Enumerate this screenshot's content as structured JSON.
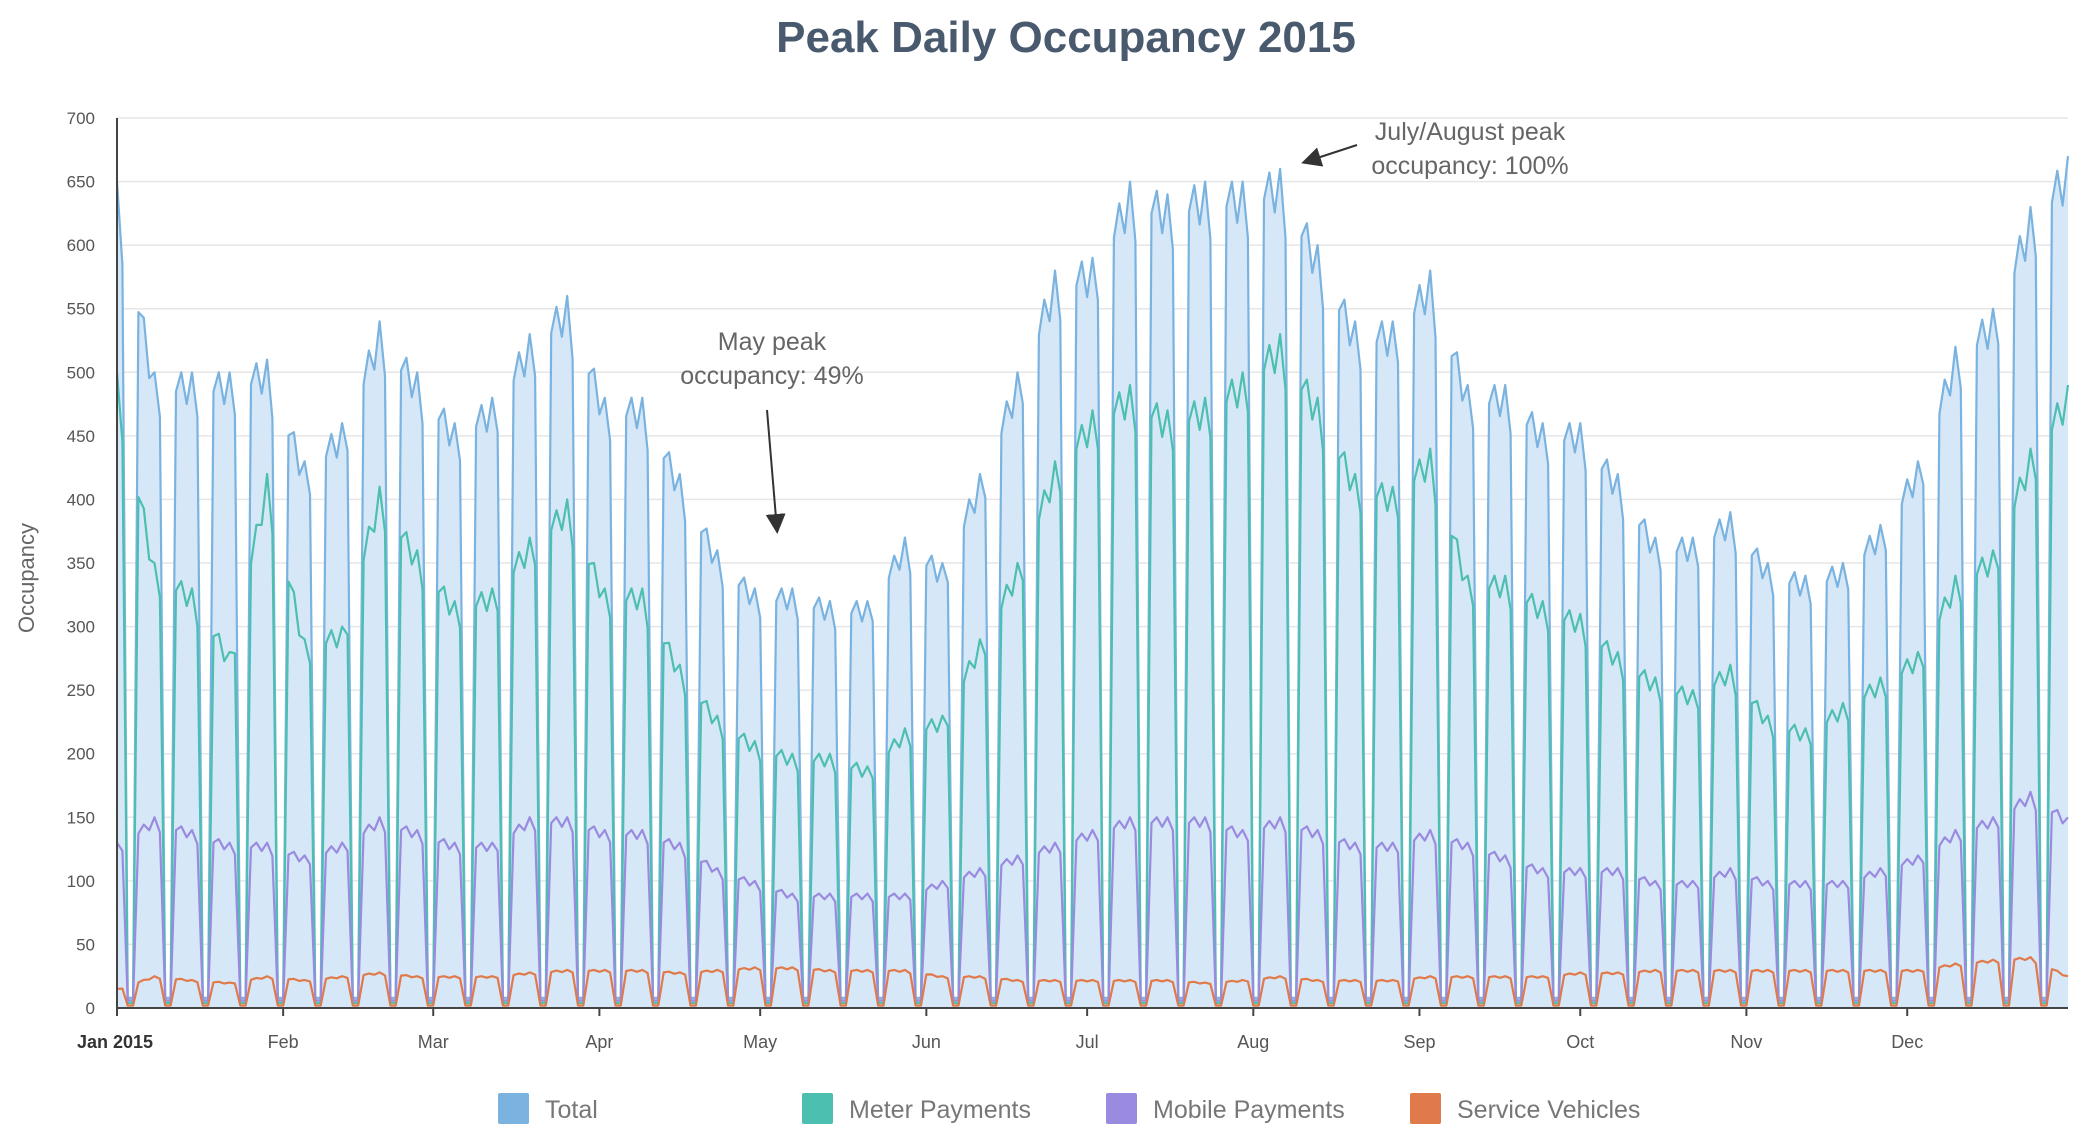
{
  "chart_data": {
    "type": "area",
    "title": "Peak Daily Occupancy 2015",
    "xlabel": "",
    "ylabel": "Occupancy",
    "ylim": [
      0,
      700
    ],
    "yticks": [
      0,
      50,
      100,
      150,
      200,
      250,
      300,
      350,
      400,
      450,
      500,
      550,
      600,
      650,
      700
    ],
    "xlim": [
      "2015-01-01",
      "2015-12-31"
    ],
    "xticks": [
      {
        "date": "2015-01-01",
        "label": "Jan 2015"
      },
      {
        "date": "2015-02-01",
        "label": "Feb"
      },
      {
        "date": "2015-03-01",
        "label": "Mar"
      },
      {
        "date": "2015-04-01",
        "label": "Apr"
      },
      {
        "date": "2015-05-01",
        "label": "May"
      },
      {
        "date": "2015-06-01",
        "label": "Jun"
      },
      {
        "date": "2015-07-01",
        "label": "Jul"
      },
      {
        "date": "2015-08-01",
        "label": "Aug"
      },
      {
        "date": "2015-09-01",
        "label": "Sep"
      },
      {
        "date": "2015-10-01",
        "label": "Oct"
      },
      {
        "date": "2015-11-01",
        "label": "Nov"
      },
      {
        "date": "2015-12-01",
        "label": "Dec"
      }
    ],
    "grid": true,
    "legend_position": "bottom",
    "x_weekly": [
      "2015-01-01",
      "2015-01-08",
      "2015-01-15",
      "2015-01-22",
      "2015-01-29",
      "2015-02-05",
      "2015-02-12",
      "2015-02-19",
      "2015-02-26",
      "2015-03-05",
      "2015-03-12",
      "2015-03-19",
      "2015-03-26",
      "2015-04-02",
      "2015-04-09",
      "2015-04-16",
      "2015-04-23",
      "2015-04-30",
      "2015-05-07",
      "2015-05-14",
      "2015-05-21",
      "2015-05-28",
      "2015-06-04",
      "2015-06-11",
      "2015-06-18",
      "2015-06-25",
      "2015-07-02",
      "2015-07-09",
      "2015-07-16",
      "2015-07-23",
      "2015-07-30",
      "2015-08-06",
      "2015-08-13",
      "2015-08-20",
      "2015-08-27",
      "2015-09-03",
      "2015-09-10",
      "2015-09-17",
      "2015-09-24",
      "2015-10-01",
      "2015-10-08",
      "2015-10-15",
      "2015-10-22",
      "2015-10-29",
      "2015-11-05",
      "2015-11-12",
      "2015-11-19",
      "2015-11-26",
      "2015-12-03",
      "2015-12-10",
      "2015-12-17",
      "2015-12-24",
      "2015-12-31"
    ],
    "weekday_peak_series": [
      {
        "name": "Total",
        "color": "#7ab3e0",
        "fill": "#d6e8f8",
        "values": [
          650,
          500,
          500,
          500,
          510,
          430,
          460,
          540,
          500,
          460,
          480,
          530,
          560,
          480,
          480,
          420,
          360,
          330,
          330,
          320,
          320,
          370,
          350,
          420,
          500,
          580,
          590,
          650,
          640,
          650,
          650,
          660,
          600,
          540,
          540,
          580,
          490,
          490,
          460,
          460,
          420,
          370,
          370,
          390,
          350,
          340,
          350,
          380,
          430,
          520,
          550,
          630,
          670
        ]
      },
      {
        "name": "Meter Payments",
        "color": "#4cbfb0",
        "values": [
          500,
          350,
          330,
          280,
          420,
          290,
          300,
          410,
          360,
          320,
          330,
          370,
          400,
          330,
          330,
          270,
          230,
          210,
          200,
          200,
          190,
          220,
          230,
          290,
          350,
          430,
          470,
          490,
          470,
          480,
          500,
          530,
          480,
          420,
          410,
          440,
          340,
          340,
          320,
          310,
          280,
          260,
          250,
          270,
          230,
          220,
          240,
          260,
          280,
          340,
          360,
          440,
          490
        ]
      },
      {
        "name": "Mobile Payments",
        "color": "#9a8ae0",
        "values": [
          130,
          150,
          140,
          130,
          130,
          120,
          130,
          150,
          140,
          130,
          130,
          150,
          150,
          140,
          140,
          130,
          110,
          100,
          90,
          90,
          90,
          90,
          100,
          110,
          120,
          130,
          140,
          150,
          150,
          150,
          140,
          150,
          140,
          130,
          130,
          140,
          130,
          120,
          110,
          110,
          110,
          100,
          100,
          110,
          100,
          100,
          100,
          110,
          120,
          140,
          150,
          170,
          150
        ]
      },
      {
        "name": "Service Vehicles",
        "color": "#e07a4a",
        "values": [
          15,
          25,
          22,
          20,
          25,
          22,
          25,
          28,
          25,
          25,
          25,
          28,
          30,
          30,
          30,
          28,
          30,
          32,
          32,
          30,
          30,
          30,
          25,
          25,
          22,
          22,
          22,
          22,
          22,
          20,
          22,
          25,
          22,
          22,
          22,
          25,
          25,
          25,
          25,
          28,
          28,
          30,
          30,
          30,
          30,
          30,
          30,
          30,
          30,
          35,
          38,
          40,
          25
        ]
      }
    ]
  },
  "legend": [
    {
      "label": "Total",
      "color": "#7ab3e0"
    },
    {
      "label": "Meter Payments",
      "color": "#4cbfb0"
    },
    {
      "label": "Mobile Payments",
      "color": "#9a8ae0"
    },
    {
      "label": "Service Vehicles",
      "color": "#e07a4a"
    }
  ],
  "annotations": [
    {
      "lines": [
        "May peak",
        "occupancy: 49%"
      ],
      "date": "2015-05-07",
      "value": 375
    },
    {
      "lines": [
        "July/August peak",
        "occupancy: 100%"
      ],
      "date": "2015-08-06",
      "value": 670
    }
  ]
}
